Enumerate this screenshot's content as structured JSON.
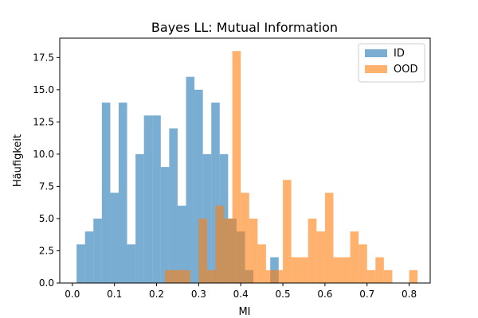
{
  "chart_data": {
    "type": "bar",
    "title": "Bayes LL: Mutual Information",
    "xlabel": "MI",
    "ylabel": "Häufigkeit",
    "xlim": [
      -0.03,
      0.85
    ],
    "ylim": [
      0,
      19
    ],
    "xticks": [
      0.0,
      0.1,
      0.2,
      0.3,
      0.4,
      0.5,
      0.6,
      0.7,
      0.8
    ],
    "xtick_labels": [
      "0.0",
      "0.1",
      "0.2",
      "0.3",
      "0.4",
      "0.5",
      "0.6",
      "0.7",
      "0.8"
    ],
    "yticks": [
      0.0,
      2.5,
      5.0,
      7.5,
      10.0,
      12.5,
      15.0,
      17.5
    ],
    "ytick_labels": [
      "0.0",
      "2.5",
      "5.0",
      "7.5",
      "10.0",
      "12.5",
      "15.0",
      "17.5"
    ],
    "grid": false,
    "legend_position": "top-right",
    "series": [
      {
        "name": "ID",
        "color": "#1f77b4",
        "opacity": 0.6,
        "bin_width": 0.02,
        "bins": [
          [
            0.01,
            3
          ],
          [
            0.03,
            4
          ],
          [
            0.05,
            5
          ],
          [
            0.07,
            14
          ],
          [
            0.09,
            7
          ],
          [
            0.11,
            14
          ],
          [
            0.13,
            3
          ],
          [
            0.15,
            10
          ],
          [
            0.17,
            13
          ],
          [
            0.19,
            13
          ],
          [
            0.21,
            9
          ],
          [
            0.23,
            12
          ],
          [
            0.25,
            6
          ],
          [
            0.27,
            16
          ],
          [
            0.29,
            15
          ],
          [
            0.31,
            10
          ],
          [
            0.33,
            14
          ],
          [
            0.35,
            10
          ],
          [
            0.37,
            5
          ],
          [
            0.39,
            4
          ],
          [
            0.41,
            1
          ],
          [
            0.43,
            0
          ],
          [
            0.45,
            0
          ],
          [
            0.47,
            2
          ]
        ]
      },
      {
        "name": "OOD",
        "color": "#ff7f0e",
        "opacity": 0.6,
        "bin_width": 0.02,
        "bins": [
          [
            0.22,
            1
          ],
          [
            0.24,
            1
          ],
          [
            0.26,
            1
          ],
          [
            0.3,
            5
          ],
          [
            0.32,
            1
          ],
          [
            0.34,
            6
          ],
          [
            0.36,
            5
          ],
          [
            0.38,
            18
          ],
          [
            0.4,
            7
          ],
          [
            0.42,
            5
          ],
          [
            0.44,
            3
          ],
          [
            0.46,
            1
          ],
          [
            0.48,
            1
          ],
          [
            0.5,
            8
          ],
          [
            0.52,
            2
          ],
          [
            0.54,
            2
          ],
          [
            0.56,
            5
          ],
          [
            0.58,
            4
          ],
          [
            0.6,
            7
          ],
          [
            0.62,
            2
          ],
          [
            0.64,
            2
          ],
          [
            0.66,
            4
          ],
          [
            0.68,
            3
          ],
          [
            0.7,
            1
          ],
          [
            0.72,
            2
          ],
          [
            0.74,
            1
          ],
          [
            0.8,
            1
          ]
        ]
      }
    ]
  }
}
